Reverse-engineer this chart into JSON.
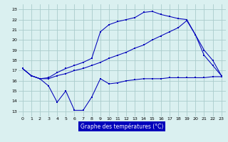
{
  "xlabel": "Graphe des températures (°C)",
  "bg_color": "#daf0f0",
  "grid_color": "#aacccc",
  "line_color": "#0000bb",
  "xlim": [
    -0.5,
    23.5
  ],
  "ylim": [
    12.5,
    23.5
  ],
  "xticks": [
    0,
    1,
    2,
    3,
    4,
    5,
    6,
    7,
    8,
    9,
    10,
    11,
    12,
    13,
    14,
    15,
    16,
    17,
    18,
    19,
    20,
    21,
    22,
    23
  ],
  "yticks": [
    13,
    14,
    15,
    16,
    17,
    18,
    19,
    20,
    21,
    22,
    23
  ],
  "s1_y": [
    17.2,
    16.5,
    16.2,
    15.5,
    13.9,
    15.0,
    13.1,
    13.1,
    14.4,
    16.2,
    15.7,
    15.8,
    16.0,
    16.1,
    16.2,
    16.2,
    16.2,
    16.3,
    16.3,
    16.3,
    16.3,
    16.3,
    16.4,
    16.4
  ],
  "s2_y": [
    17.2,
    16.5,
    16.2,
    16.2,
    16.5,
    16.7,
    17.0,
    17.2,
    17.5,
    17.8,
    18.2,
    18.5,
    18.8,
    19.2,
    19.5,
    20.0,
    20.4,
    20.8,
    21.2,
    21.9,
    20.5,
    19.0,
    18.0,
    16.5
  ],
  "s3_y": [
    17.2,
    16.5,
    16.2,
    16.3,
    16.8,
    17.2,
    17.5,
    17.8,
    18.2,
    20.8,
    21.5,
    21.8,
    22.0,
    22.2,
    22.7,
    22.8,
    22.5,
    22.3,
    22.1,
    22.0,
    20.5,
    18.5,
    17.5,
    16.5
  ]
}
